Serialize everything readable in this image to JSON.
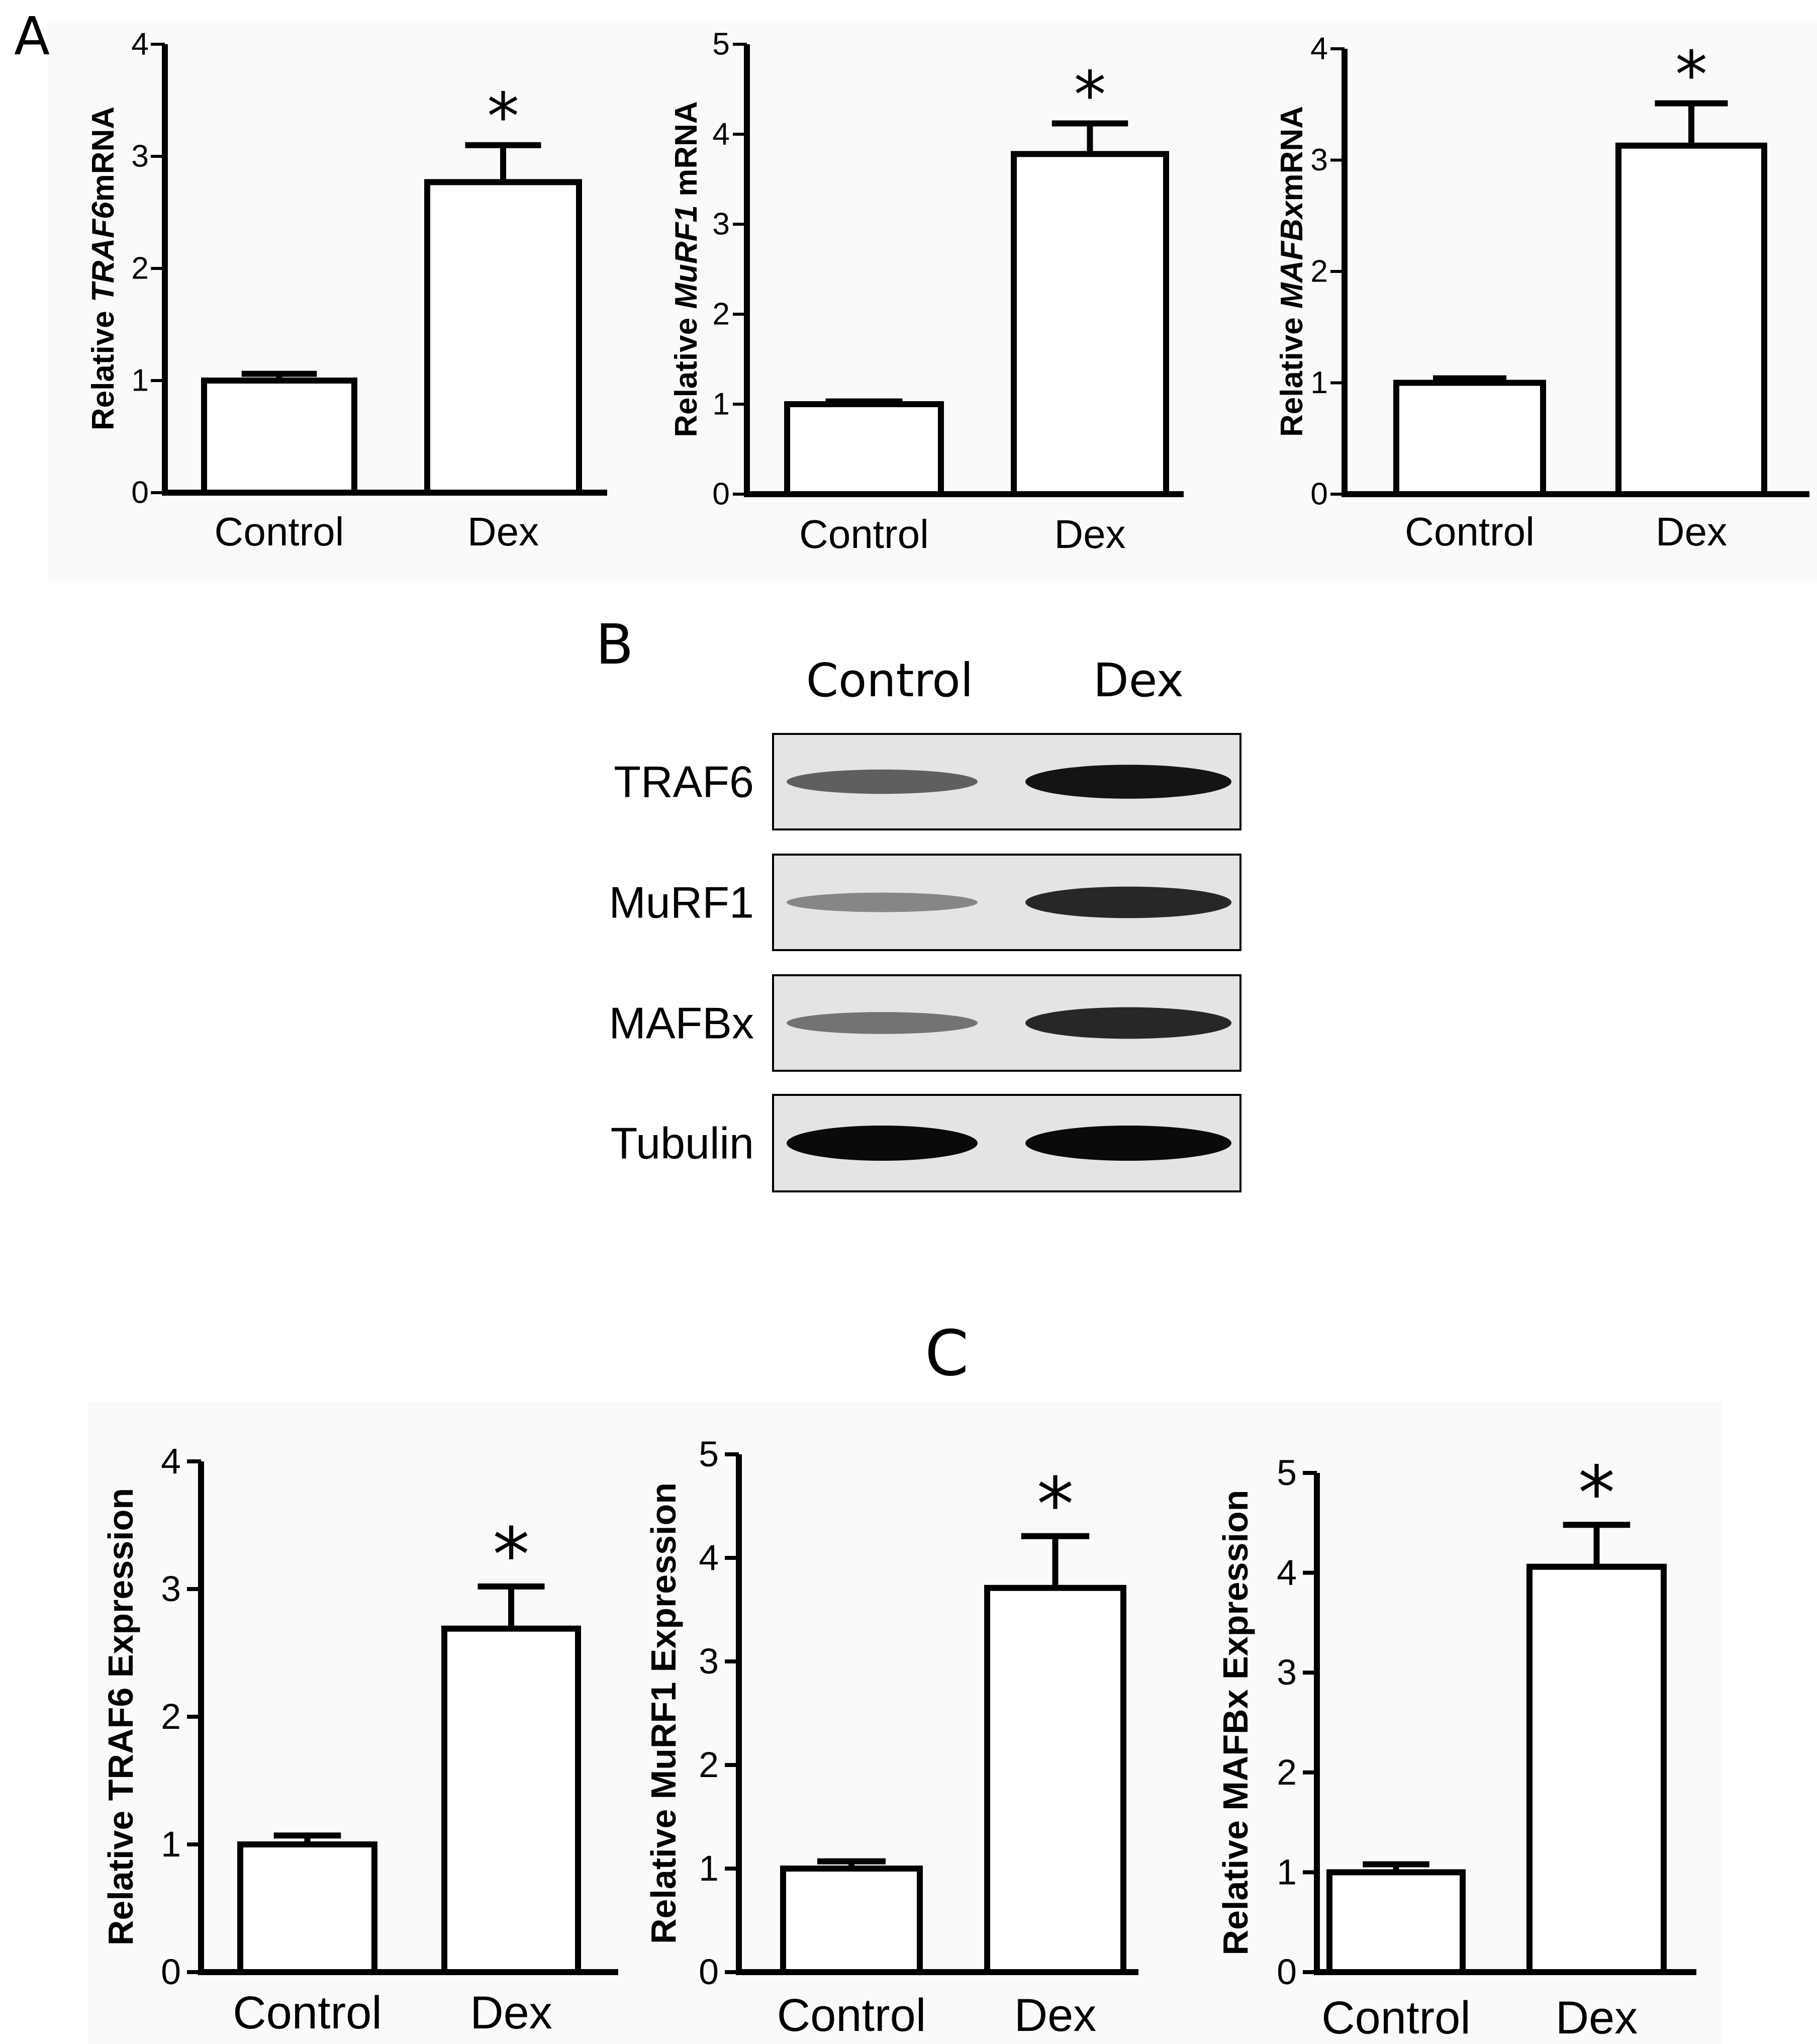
{
  "figure": {
    "panel_labels": {
      "a": "A",
      "b": "B",
      "c": "C"
    },
    "significance_mark": "*"
  },
  "chart_data": [
    {
      "id": "A1",
      "panel": "A",
      "type": "bar",
      "categories": [
        "Control",
        "Dex"
      ],
      "values": [
        1.0,
        2.77
      ],
      "errors": [
        0.06,
        0.33
      ],
      "significant": [
        false,
        true
      ],
      "ylim": [
        0,
        4
      ],
      "yticks": [
        0,
        1,
        2,
        3,
        4
      ],
      "ylabel_parts": [
        {
          "text": "Relative ",
          "italic": false
        },
        {
          "text": "TRAF6",
          "italic": true
        },
        {
          "text": "mRNA",
          "italic": false
        }
      ],
      "title": "",
      "xlabel": ""
    },
    {
      "id": "A2",
      "panel": "A",
      "type": "bar",
      "categories": [
        "Control",
        "Dex"
      ],
      "values": [
        1.0,
        3.78
      ],
      "errors": [
        0.03,
        0.34
      ],
      "significant": [
        false,
        true
      ],
      "ylim": [
        0,
        5
      ],
      "yticks": [
        0,
        1,
        2,
        3,
        4,
        5
      ],
      "ylabel_parts": [
        {
          "text": "Relative ",
          "italic": false
        },
        {
          "text": "MuRF1",
          "italic": true
        },
        {
          "text": " mRNA",
          "italic": false
        }
      ],
      "title": "",
      "xlabel": ""
    },
    {
      "id": "A3",
      "panel": "A",
      "type": "bar",
      "categories": [
        "Control",
        "Dex"
      ],
      "values": [
        1.0,
        3.13
      ],
      "errors": [
        0.04,
        0.38
      ],
      "significant": [
        false,
        true
      ],
      "ylim": [
        0,
        4
      ],
      "yticks": [
        0,
        1,
        2,
        3,
        4
      ],
      "ylabel_parts": [
        {
          "text": "Relative ",
          "italic": false
        },
        {
          "text": "MAFBx",
          "italic": true
        },
        {
          "text": "mRNA",
          "italic": false
        }
      ],
      "title": "",
      "xlabel": ""
    },
    {
      "id": "C1",
      "panel": "C",
      "type": "bar",
      "categories": [
        "Control",
        "Dex"
      ],
      "values": [
        1.0,
        2.69
      ],
      "errors": [
        0.07,
        0.33
      ],
      "significant": [
        false,
        true
      ],
      "ylim": [
        0,
        4
      ],
      "yticks": [
        0,
        1,
        2,
        3,
        4
      ],
      "ylabel_parts": [
        {
          "text": "Relative TRAF6 Expression",
          "italic": false
        }
      ],
      "title": "",
      "xlabel": ""
    },
    {
      "id": "C2",
      "panel": "C",
      "type": "bar",
      "categories": [
        "Control",
        "Dex"
      ],
      "values": [
        1.0,
        3.71
      ],
      "errors": [
        0.07,
        0.5
      ],
      "significant": [
        false,
        true
      ],
      "ylim": [
        0,
        5
      ],
      "yticks": [
        0,
        1,
        2,
        3,
        4,
        5
      ],
      "ylabel_parts": [
        {
          "text": "Relative MuRF1 Expression",
          "italic": false
        }
      ],
      "title": "",
      "xlabel": ""
    },
    {
      "id": "C3",
      "panel": "C",
      "type": "bar",
      "categories": [
        "Control",
        "Dex"
      ],
      "values": [
        1.0,
        4.06
      ],
      "errors": [
        0.08,
        0.42
      ],
      "significant": [
        false,
        true
      ],
      "ylim": [
        0,
        5
      ],
      "yticks": [
        0,
        1,
        2,
        3,
        4,
        5
      ],
      "ylabel_parts": [
        {
          "text": "Relative MAFBx Expression",
          "italic": false
        }
      ],
      "title": "",
      "xlabel": ""
    }
  ],
  "western_blot": {
    "lanes": [
      "Control",
      "Dex"
    ],
    "rows": [
      {
        "protein": "TRAF6",
        "intensity": [
          0.55,
          0.95
        ]
      },
      {
        "protein": "MuRF1",
        "intensity": [
          0.35,
          0.85
        ]
      },
      {
        "protein": "MAFBx",
        "intensity": [
          0.45,
          0.85
        ]
      },
      {
        "protein": "Tubulin",
        "intensity": [
          1.0,
          1.0
        ]
      }
    ]
  }
}
